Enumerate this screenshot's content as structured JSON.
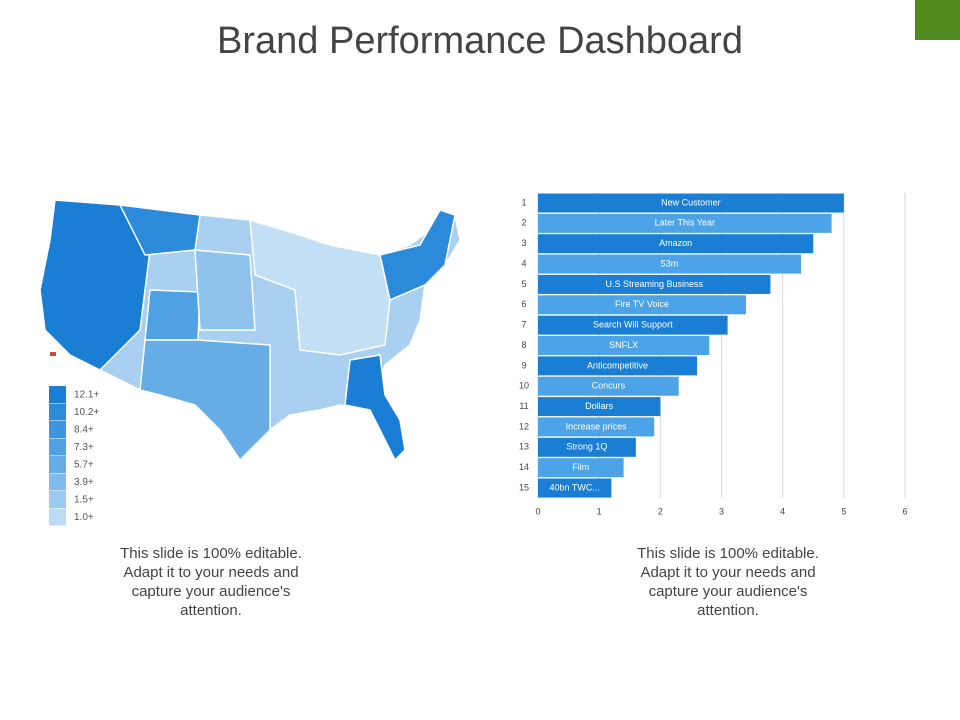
{
  "title": "Brand Performance Dashboard",
  "map": {
    "legend": [
      {
        "label": "12.1+",
        "color": "#1a7fd4"
      },
      {
        "label": "10.2+",
        "color": "#2b8ad9"
      },
      {
        "label": "8.4+",
        "color": "#3d95de"
      },
      {
        "label": "7.3+",
        "color": "#4fa1e3"
      },
      {
        "label": "5.7+",
        "color": "#66ade6"
      },
      {
        "label": "3.9+",
        "color": "#80bbea"
      },
      {
        "label": "1.5+",
        "color": "#9bcaee"
      },
      {
        "label": "1.0+",
        "color": "#bcdcf4"
      }
    ]
  },
  "chart_data": {
    "type": "bar",
    "orientation": "horizontal",
    "categories": [
      "1",
      "2",
      "3",
      "4",
      "5",
      "6",
      "7",
      "8",
      "9",
      "10",
      "11",
      "12",
      "13",
      "14",
      "15"
    ],
    "bar_labels": [
      "New Customer",
      "Later This Year",
      "Amazon",
      "53m",
      "U.S Streaming Business",
      "Fire TV Voice",
      "Search Will Support",
      "SNFLX",
      "Anticompetitive",
      "Concurs",
      "Dollars",
      "Increase prices",
      "Strong 1Q",
      "Film",
      "40bn TWC..."
    ],
    "values": [
      5,
      4.8,
      4.5,
      4.3,
      3.8,
      3.4,
      3.1,
      2.8,
      2.6,
      2.3,
      2.0,
      1.9,
      1.6,
      1.4,
      1.2
    ],
    "colors": [
      "#1a7fd4",
      "#4da3e8"
    ],
    "xlim": [
      0,
      6
    ],
    "xticks": [
      0,
      1,
      2,
      3,
      4,
      5,
      6
    ],
    "grid": true
  },
  "captions": [
    "This slide is 100% editable. Adapt it to your needs and capture your audience's attention.",
    "This slide is 100% editable. Adapt it to your needs and capture your audience's attention."
  ]
}
